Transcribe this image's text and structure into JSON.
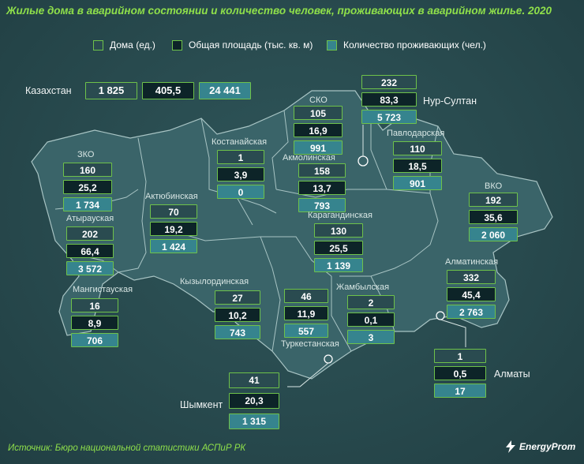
{
  "title": "Жилые дома в аварийном состоянии и количество человек, проживающих в аварийном жилье. 2020",
  "legend": {
    "houses": "Дома (ед.)",
    "area": "Общая площадь (тыс. кв. м)",
    "people": "Количество проживающих (чел.)"
  },
  "colors": {
    "houses": "#2a4b50",
    "area": "#0d2428",
    "people": "#36848e",
    "border": "#6ec24a",
    "title": "#8fe04a"
  },
  "total": {
    "name": "Казахстан",
    "houses": "1 825",
    "area": "405,5",
    "people": "24 441"
  },
  "regions": {
    "nursultan": {
      "name": "Нур-Султан",
      "houses": "232",
      "area": "83,3",
      "people": "5 723"
    },
    "sko": {
      "name": "СКО",
      "houses": "105",
      "area": "16,9",
      "people": "991"
    },
    "pavlodar": {
      "name": "Павлодарская",
      "houses": "110",
      "area": "18,5",
      "people": "901"
    },
    "kostanay": {
      "name": "Костанайская",
      "houses": "1",
      "area": "3,9",
      "people": "0"
    },
    "akmola": {
      "name": "Акмолинская",
      "houses": "158",
      "area": "13,7",
      "people": "793"
    },
    "zko": {
      "name": "ЗКО",
      "houses": "160",
      "area": "25,2",
      "people": "1 734"
    },
    "aktobe": {
      "name": "Актюбинская",
      "houses": "70",
      "area": "19,2",
      "people": "1 424"
    },
    "vko": {
      "name": "ВКО",
      "houses": "192",
      "area": "35,6",
      "people": "2 060"
    },
    "atyrau": {
      "name": "Атырауская",
      "houses": "202",
      "area": "66,4",
      "people": "3 572"
    },
    "karaganda": {
      "name": "Карагандинская",
      "houses": "130",
      "area": "25,5",
      "people": "1 139"
    },
    "mangystau": {
      "name": "Мангистауская",
      "houses": "16",
      "area": "8,9",
      "people": "706"
    },
    "kyzylorda": {
      "name": "Кызылординская",
      "houses": "27",
      "area": "10,2",
      "people": "743"
    },
    "zhambyl": {
      "name": "Жамбылская",
      "houses": "2",
      "area": "0,1",
      "people": "3"
    },
    "almatyobl": {
      "name": "Алматинская",
      "houses": "332",
      "area": "45,4",
      "people": "2 763"
    },
    "turkestan": {
      "name": "Туркестанская",
      "houses": "46",
      "area": "11,9",
      "people": "557"
    },
    "almaty": {
      "name": "Алматы",
      "houses": "1",
      "area": "0,5",
      "people": "17"
    },
    "shymkent": {
      "name": "Шымкент",
      "houses": "41",
      "area": "20,3",
      "people": "1 315"
    }
  },
  "source": "Источник: Бюро национальной статистики АСПиР РК",
  "logo": "EnergyProm"
}
